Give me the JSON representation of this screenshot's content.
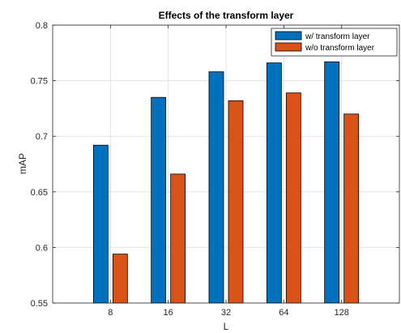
{
  "chart_data": {
    "type": "bar",
    "title": "Effects of the transform layer",
    "xlabel": "L",
    "ylabel": "mAP",
    "categories": [
      "8",
      "16",
      "32",
      "64",
      "128"
    ],
    "series": [
      {
        "name": "w/ transform layer",
        "color": "#0072BD",
        "values": [
          0.692,
          0.735,
          0.758,
          0.766,
          0.767
        ]
      },
      {
        "name": "w/o transform layer",
        "color": "#D95319",
        "values": [
          0.594,
          0.666,
          0.732,
          0.739,
          0.72
        ]
      }
    ],
    "ylim": [
      0.55,
      0.8
    ],
    "yticks": [
      "0.55",
      "0.6",
      "0.65",
      "0.7",
      "0.75",
      "0.8"
    ],
    "grid": true,
    "legend_position": "top-right"
  }
}
